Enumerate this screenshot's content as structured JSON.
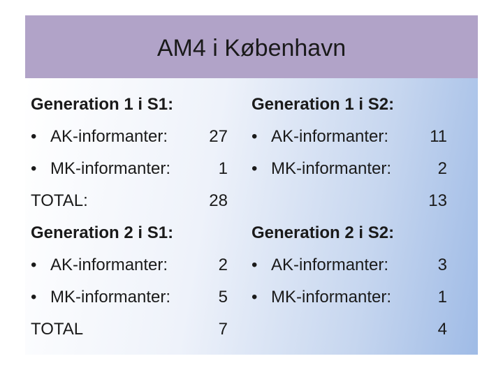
{
  "title": "AM4 i København",
  "columns": [
    {
      "sections": [
        {
          "heading": "Generation 1 i S1:",
          "items": [
            {
              "label": "AK-informanter:",
              "value": 27
            },
            {
              "label": "MK-informanter:",
              "value": 1
            }
          ],
          "total_label": "TOTAL:",
          "total": 28
        },
        {
          "heading": "Generation 2 i S1:",
          "items": [
            {
              "label": "AK-informanter:",
              "value": 2
            },
            {
              "label": "MK-informanter:",
              "value": 5
            }
          ],
          "total_label": "TOTAL",
          "total": 7
        }
      ]
    },
    {
      "sections": [
        {
          "heading": "Generation 1 i S2:",
          "items": [
            {
              "label": "AK-informanter:",
              "value": 11
            },
            {
              "label": "MK-informanter:",
              "value": 2
            }
          ],
          "total": 13
        },
        {
          "heading": "Generation 2 i S2:",
          "items": [
            {
              "label": "AK-informanter:",
              "value": 3
            },
            {
              "label": "MK-informanter:",
              "value": 1
            }
          ],
          "total": 4
        }
      ]
    }
  ]
}
